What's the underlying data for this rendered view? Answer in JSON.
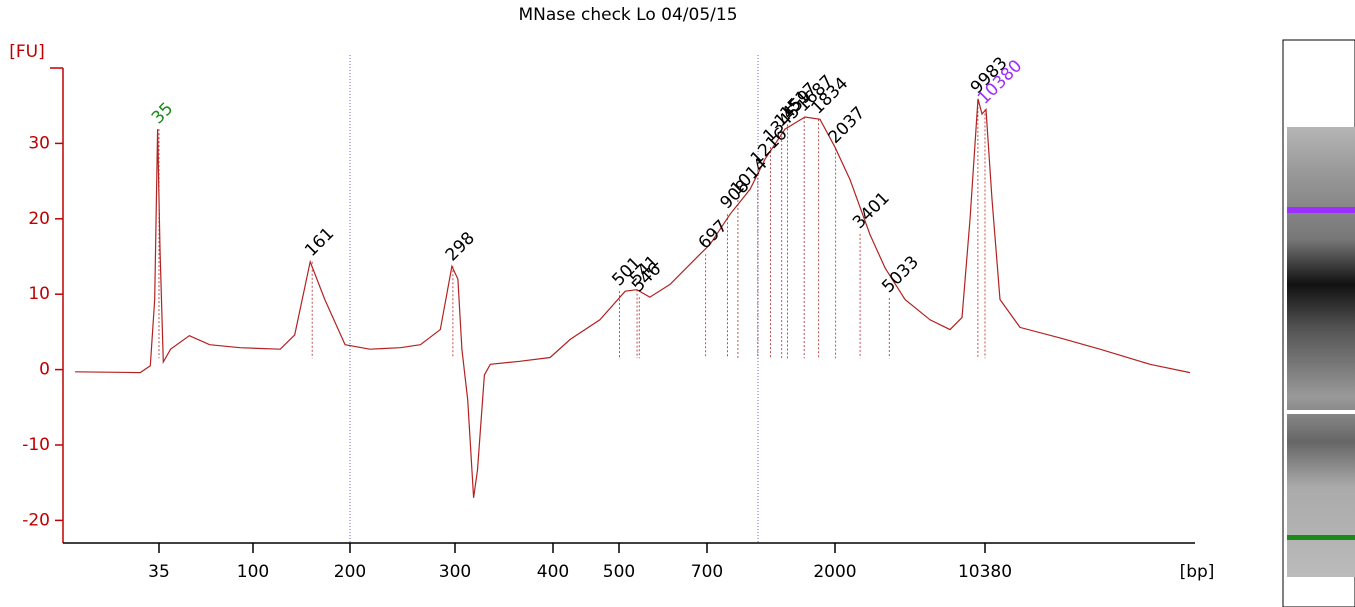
{
  "chart_data": {
    "type": "line",
    "title": "MNase check Lo 04/05/15",
    "y_label": "[FU]",
    "x_label": "[bp]",
    "x": [
      -23,
      22,
      29,
      32,
      34,
      35.7,
      38,
      43,
      56,
      70,
      91,
      128,
      143,
      159,
      174,
      195,
      219,
      248,
      267,
      286,
      297,
      303,
      307,
      313,
      319,
      323,
      330,
      336,
      366,
      397,
      426,
      471,
      514,
      541,
      570,
      616,
      684,
      730,
      934,
      1137,
      1289,
      1492,
      1695,
      1848,
      2000,
      2838,
      3956,
      4794,
      5911,
      7308,
      8425,
      9095,
      9542,
      9989,
      10212,
      10436,
      10771,
      11218,
      12335,
      14570,
      16805,
      19598,
      21833
    ],
    "series": [
      {
        "color": "#b22222",
        "values": [
          -0.3,
          -0.4,
          0.5,
          9.3,
          31.9,
          16,
          1,
          2.7,
          4.5,
          3.3,
          2.9,
          2.7,
          4.6,
          14.3,
          9.3,
          3.3,
          2.7,
          2.9,
          3.3,
          5.3,
          13.7,
          12,
          2.7,
          -4,
          -17,
          -13.3,
          -0.7,
          0.7,
          1.1,
          1.6,
          4,
          6.6,
          10.4,
          10.6,
          9.6,
          11.3,
          15.3,
          16.6,
          20.6,
          23.9,
          27.9,
          31.9,
          33.5,
          33.2,
          29.5,
          25.2,
          17.9,
          13.5,
          9.3,
          6.6,
          5.3,
          6.9,
          19.9,
          35.9,
          33.9,
          34.5,
          22.6,
          9.3,
          5.6,
          4.2,
          2.7,
          0.7,
          -0.4
        ]
      }
    ],
    "peaks": [
      35,
      161,
      298,
      501,
      541,
      546,
      697,
      908,
      1014,
      1216,
      1345,
      1459,
      1517,
      1687,
      1834,
      2037,
      3401,
      5033,
      9983,
      10380
    ],
    "peak_heights": [
      31.9,
      14.3,
      13.7,
      10.4,
      10.6,
      9.6,
      15.3,
      20.6,
      22.5,
      26.5,
      29.5,
      31.5,
      32.5,
      33.5,
      33.2,
      29.3,
      18,
      9.5,
      35.9,
      34.5
    ],
    "peak_colors": [
      "#1a8a1a",
      "#000000",
      "#000000",
      "#000000",
      "#000000",
      "#000000",
      "#000000",
      "#000000",
      "#000000",
      "#000000",
      "#000000",
      "#000000",
      "#000000",
      "#000000",
      "#000000",
      "#000000",
      "#000000",
      "#000000",
      "#000000",
      "#9b30ff"
    ],
    "xlim": [
      -30,
      22000
    ],
    "xticks": [
      35,
      100,
      200,
      300,
      400,
      500,
      700,
      2000,
      10380
    ],
    "ylim": [
      -23,
      40
    ],
    "yticks": [
      -20,
      -10,
      0,
      10,
      20,
      30
    ]
  }
}
